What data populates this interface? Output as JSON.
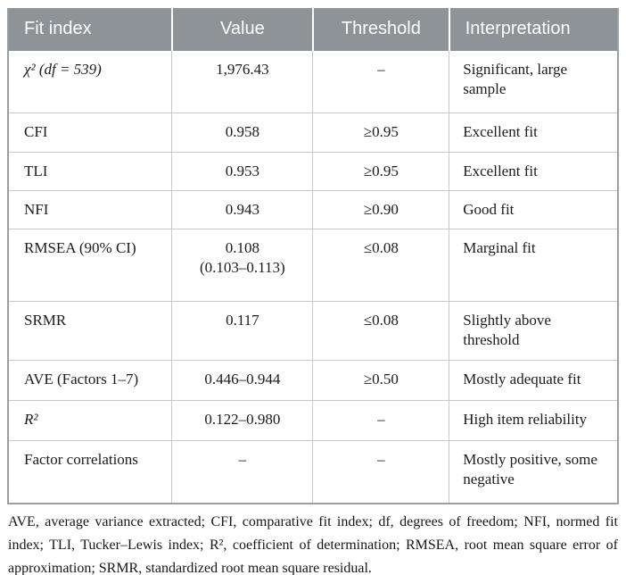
{
  "table": {
    "columns": [
      "Fit index",
      "Value",
      "Threshold",
      "Interpretation"
    ],
    "rows": [
      {
        "fit_index": "χ² (df = 539)",
        "math": true,
        "value": "1,976.43",
        "threshold": "–",
        "interpretation": "Significant, large sample"
      },
      {
        "fit_index": "CFI",
        "math": false,
        "value": "0.958",
        "threshold": "≥0.95",
        "interpretation": "Excellent fit"
      },
      {
        "fit_index": "TLI",
        "math": false,
        "value": "0.953",
        "threshold": "≥0.95",
        "interpretation": "Excellent fit"
      },
      {
        "fit_index": "NFI",
        "math": false,
        "value": "0.943",
        "threshold": "≥0.90",
        "interpretation": "Good fit"
      },
      {
        "fit_index": "RMSEA (90% CI)",
        "math": false,
        "value": "0.108\n(0.103–0.113)",
        "threshold": "≤0.08",
        "interpretation": "Marginal fit"
      },
      {
        "fit_index": "SRMR",
        "math": false,
        "value": "0.117",
        "threshold": "≤0.08",
        "interpretation": "Slightly above threshold"
      },
      {
        "fit_index": "AVE (Factors 1–7)",
        "math": false,
        "value": "0.446–0.944",
        "threshold": "≥0.50",
        "interpretation": "Mostly adequate fit"
      },
      {
        "fit_index": "R²",
        "math": true,
        "value": "0.122–0.980",
        "threshold": "–",
        "interpretation": "High item reliability"
      },
      {
        "fit_index": "Factor correlations",
        "math": false,
        "value": "–",
        "threshold": "–",
        "interpretation": "Mostly positive, some negative"
      }
    ],
    "footnote": "AVE, average variance extracted; CFI, comparative fit index; df, degrees of freedom; NFI, normed fit index; TLI, Tucker–Lewis index; R², coefficient of determination; RMSEA, root mean square error of approximation; SRMR, standardized root mean square residual."
  },
  "colors": {
    "header_bg": "#8d9396",
    "header_text": "#ffffff",
    "outer_border": "#9aa0a2",
    "inner_border": "#c6c9ca",
    "body_text": "#1b1b1b"
  }
}
